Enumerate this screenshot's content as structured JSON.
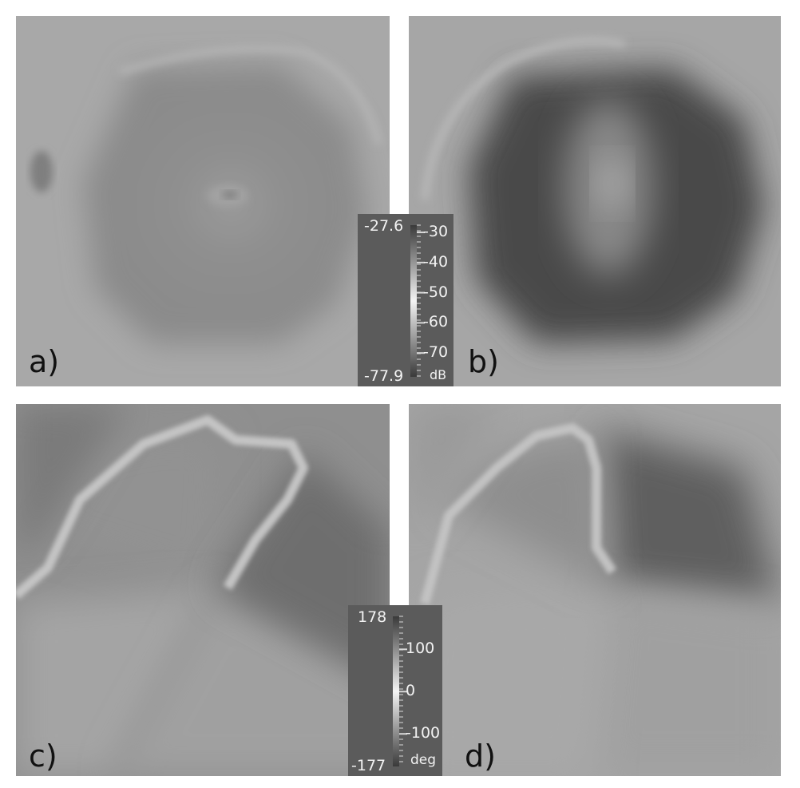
{
  "panels": [
    {
      "id": "a",
      "label": "a)"
    },
    {
      "id": "b",
      "label": "b)"
    },
    {
      "id": "c",
      "label": "c)"
    },
    {
      "id": "d",
      "label": "d)"
    }
  ],
  "magnitude_colorbar": {
    "max_label": "-27.6",
    "min_label": "-77.9",
    "ticks": [
      "-30",
      "-40",
      "-50",
      "-60",
      "-70"
    ],
    "tick_values": [
      -30,
      -40,
      -50,
      -60,
      -70
    ],
    "range": [
      -77.9,
      -27.6
    ],
    "unit": "dB"
  },
  "phase_colorbar": {
    "max_label": "178",
    "min_label": "-177",
    "ticks": [
      "100",
      "0",
      "-100"
    ],
    "tick_values": [
      100,
      0,
      -100
    ],
    "range": [
      -177,
      178
    ],
    "unit": "deg"
  }
}
